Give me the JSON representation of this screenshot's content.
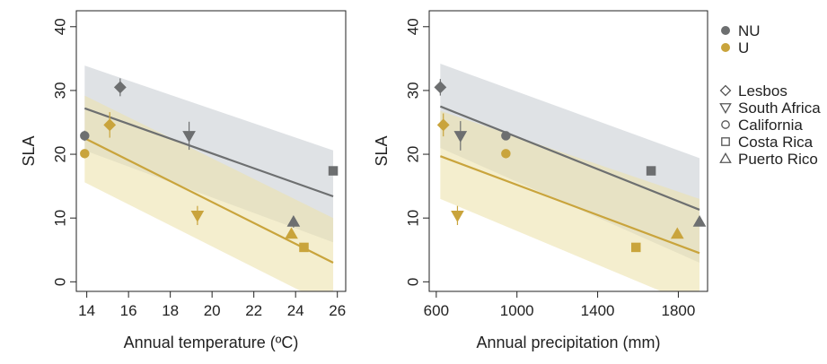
{
  "colors": {
    "NU": "#6d6f70",
    "U": "#c9a43c",
    "band_NU": "#c9ced3",
    "band_U": "#ece2ad"
  },
  "legend": {
    "groups": [
      {
        "label": "NU",
        "key": "NU"
      },
      {
        "label": "U",
        "key": "U"
      }
    ],
    "locations": [
      {
        "label": "Lesbos",
        "shape": "diamond"
      },
      {
        "label": "South Africa",
        "shape": "triangle-down"
      },
      {
        "label": "California",
        "shape": "circle"
      },
      {
        "label": "Costa Rica",
        "shape": "square"
      },
      {
        "label": "Puerto Rico",
        "shape": "triangle-up"
      }
    ]
  },
  "chart_data": [
    {
      "type": "scatter",
      "xlabel": "Annual temperature (ºC)",
      "ylabel": "SLA",
      "xlim": [
        13.5,
        26.4
      ],
      "ylim": [
        -1.5,
        42.5
      ],
      "xticks": [
        14,
        16,
        18,
        20,
        22,
        24,
        26
      ],
      "yticks": [
        0,
        10,
        20,
        30,
        40
      ],
      "grid": false,
      "series": [
        {
          "name": "NU",
          "color_key": "NU",
          "points": [
            {
              "location": "California",
              "shape": "circle",
              "x": 13.9,
              "y": 22.9,
              "err": 0.8
            },
            {
              "location": "Lesbos",
              "shape": "diamond",
              "x": 15.6,
              "y": 30.5,
              "err": 1.4
            },
            {
              "location": "South Africa",
              "shape": "triangle-down",
              "x": 18.9,
              "y": 22.9,
              "err": 2.2
            },
            {
              "location": "Puerto Rico",
              "shape": "triangle-up",
              "x": 23.9,
              "y": 9.4,
              "err": 0.9
            },
            {
              "location": "Costa Rica",
              "shape": "square",
              "x": 25.8,
              "y": 17.4,
              "err": 0.5
            }
          ],
          "fit": {
            "x": [
              13.9,
              25.8
            ],
            "y": [
              27.2,
              13.4
            ]
          },
          "band": {
            "x": [
              13.9,
              25.8
            ],
            "lower": [
              20.6,
              6.2
            ],
            "upper": [
              33.9,
              20.6
            ]
          }
        },
        {
          "name": "U",
          "color_key": "U",
          "points": [
            {
              "location": "California",
              "shape": "circle",
              "x": 13.9,
              "y": 20.1,
              "err": 0.5
            },
            {
              "location": "Lesbos",
              "shape": "diamond",
              "x": 15.1,
              "y": 24.6,
              "err": 2.0
            },
            {
              "location": "South Africa",
              "shape": "triangle-down",
              "x": 19.3,
              "y": 10.4,
              "err": 1.5
            },
            {
              "location": "Puerto Rico",
              "shape": "triangle-up",
              "x": 23.8,
              "y": 7.5,
              "err": 0.7
            },
            {
              "location": "Costa Rica",
              "shape": "square",
              "x": 24.4,
              "y": 5.4,
              "err": 0.5
            }
          ],
          "fit": {
            "x": [
              13.9,
              25.8
            ],
            "y": [
              22.5,
              3.0
            ]
          },
          "band": {
            "x": [
              13.9,
              25.8
            ],
            "lower": [
              15.6,
              -4.0
            ],
            "upper": [
              29.2,
              10.0
            ]
          }
        }
      ]
    },
    {
      "type": "scatter",
      "xlabel": "Annual precipitation (mm)",
      "ylabel": "SLA",
      "xlim": [
        565,
        1945
      ],
      "ylim": [
        -1.5,
        42.5
      ],
      "xticks": [
        600,
        1000,
        1400,
        1800
      ],
      "yticks": [
        0,
        10,
        20,
        30,
        40
      ],
      "grid": false,
      "series": [
        {
          "name": "NU",
          "color_key": "NU",
          "points": [
            {
              "location": "Lesbos",
              "shape": "diamond",
              "x": 620,
              "y": 30.5,
              "err": 1.3
            },
            {
              "location": "South Africa",
              "shape": "triangle-down",
              "x": 720,
              "y": 22.9,
              "err": 2.3
            },
            {
              "location": "California",
              "shape": "circle",
              "x": 945,
              "y": 22.9,
              "err": 0.6
            },
            {
              "location": "Costa Rica",
              "shape": "square",
              "x": 1665,
              "y": 17.4,
              "err": 0.5
            },
            {
              "location": "Puerto Rico",
              "shape": "triangle-up",
              "x": 1905,
              "y": 9.4,
              "err": 0.5
            }
          ],
          "fit": {
            "x": [
              620,
              1905
            ],
            "y": [
              27.5,
              11.3
            ]
          },
          "band": {
            "x": [
              620,
              1905
            ],
            "lower": [
              21.0,
              3.0
            ],
            "upper": [
              34.2,
              19.4
            ]
          }
        },
        {
          "name": "U",
          "color_key": "U",
          "points": [
            {
              "location": "Lesbos",
              "shape": "diamond",
              "x": 635,
              "y": 24.6,
              "err": 1.8
            },
            {
              "location": "South Africa",
              "shape": "triangle-down",
              "x": 705,
              "y": 10.4,
              "err": 1.5
            },
            {
              "location": "California",
              "shape": "circle",
              "x": 945,
              "y": 20.1,
              "err": 0.5
            },
            {
              "location": "Costa Rica",
              "shape": "square",
              "x": 1590,
              "y": 5.4,
              "err": 0.4
            },
            {
              "location": "Puerto Rico",
              "shape": "triangle-up",
              "x": 1795,
              "y": 7.5,
              "err": 0.7
            }
          ],
          "fit": {
            "x": [
              620,
              1905
            ],
            "y": [
              19.7,
              4.5
            ]
          },
          "band": {
            "x": [
              620,
              1905
            ],
            "lower": [
              13.0,
              -4.0
            ],
            "upper": [
              26.8,
              13.0
            ]
          }
        }
      ]
    }
  ]
}
